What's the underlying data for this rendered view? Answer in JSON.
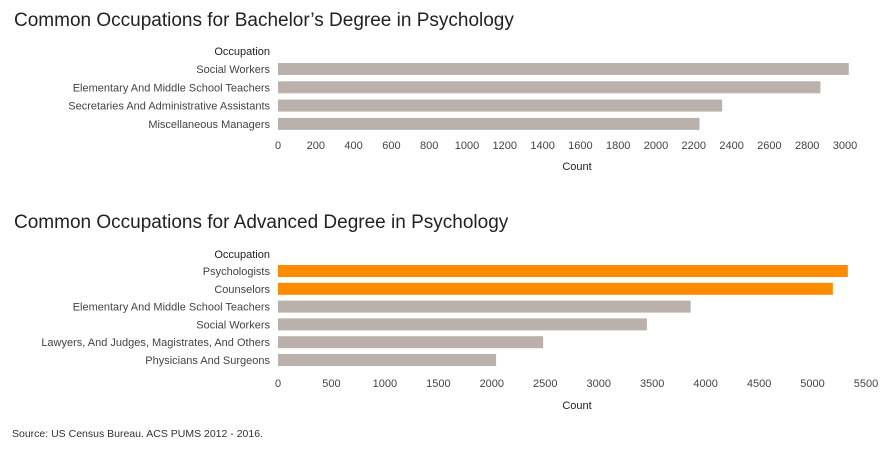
{
  "chart_data": [
    {
      "type": "bar",
      "orientation": "horizontal",
      "title": "Common Occupations for Bachelor’s Degree in Psychology",
      "ylabel": "Occupation",
      "xlabel": "Count",
      "categories": [
        "Social Workers",
        "Elementary And Middle School Teachers",
        "Secretaries And Administrative Assistants",
        "Miscellaneous Managers"
      ],
      "values": [
        3020,
        2870,
        2350,
        2230
      ],
      "highlight": [
        false,
        false,
        false,
        false
      ],
      "xlim": [
        0,
        3000
      ],
      "xticks": [
        0,
        200,
        400,
        600,
        800,
        1000,
        1200,
        1400,
        1600,
        1800,
        2000,
        2200,
        2400,
        2600,
        2800,
        3000
      ]
    },
    {
      "type": "bar",
      "orientation": "horizontal",
      "title": "Common Occupations for Advanced Degree in Psychology",
      "ylabel": "Occupation",
      "xlabel": "Count",
      "categories": [
        "Psychologists",
        "Counselors",
        "Elementary And Middle School Teachers",
        "Social Workers",
        "Lawyers, And Judges, Magistrates, And Others",
        "Physicians And Surgeons"
      ],
      "values": [
        5330,
        5190,
        3860,
        3450,
        2480,
        2040
      ],
      "highlight": [
        true,
        true,
        false,
        false,
        false,
        false
      ],
      "xlim": [
        0,
        5500
      ],
      "xticks": [
        0,
        500,
        1000,
        1500,
        2000,
        2500,
        3000,
        3500,
        4000,
        4500,
        5000,
        5500
      ]
    }
  ],
  "colors": {
    "bar": "#bab0ac",
    "highlight": "#ff8c00",
    "text": "#333333"
  },
  "source": "Source: US Census Bureau. ACS PUMS 2012 - 2016."
}
